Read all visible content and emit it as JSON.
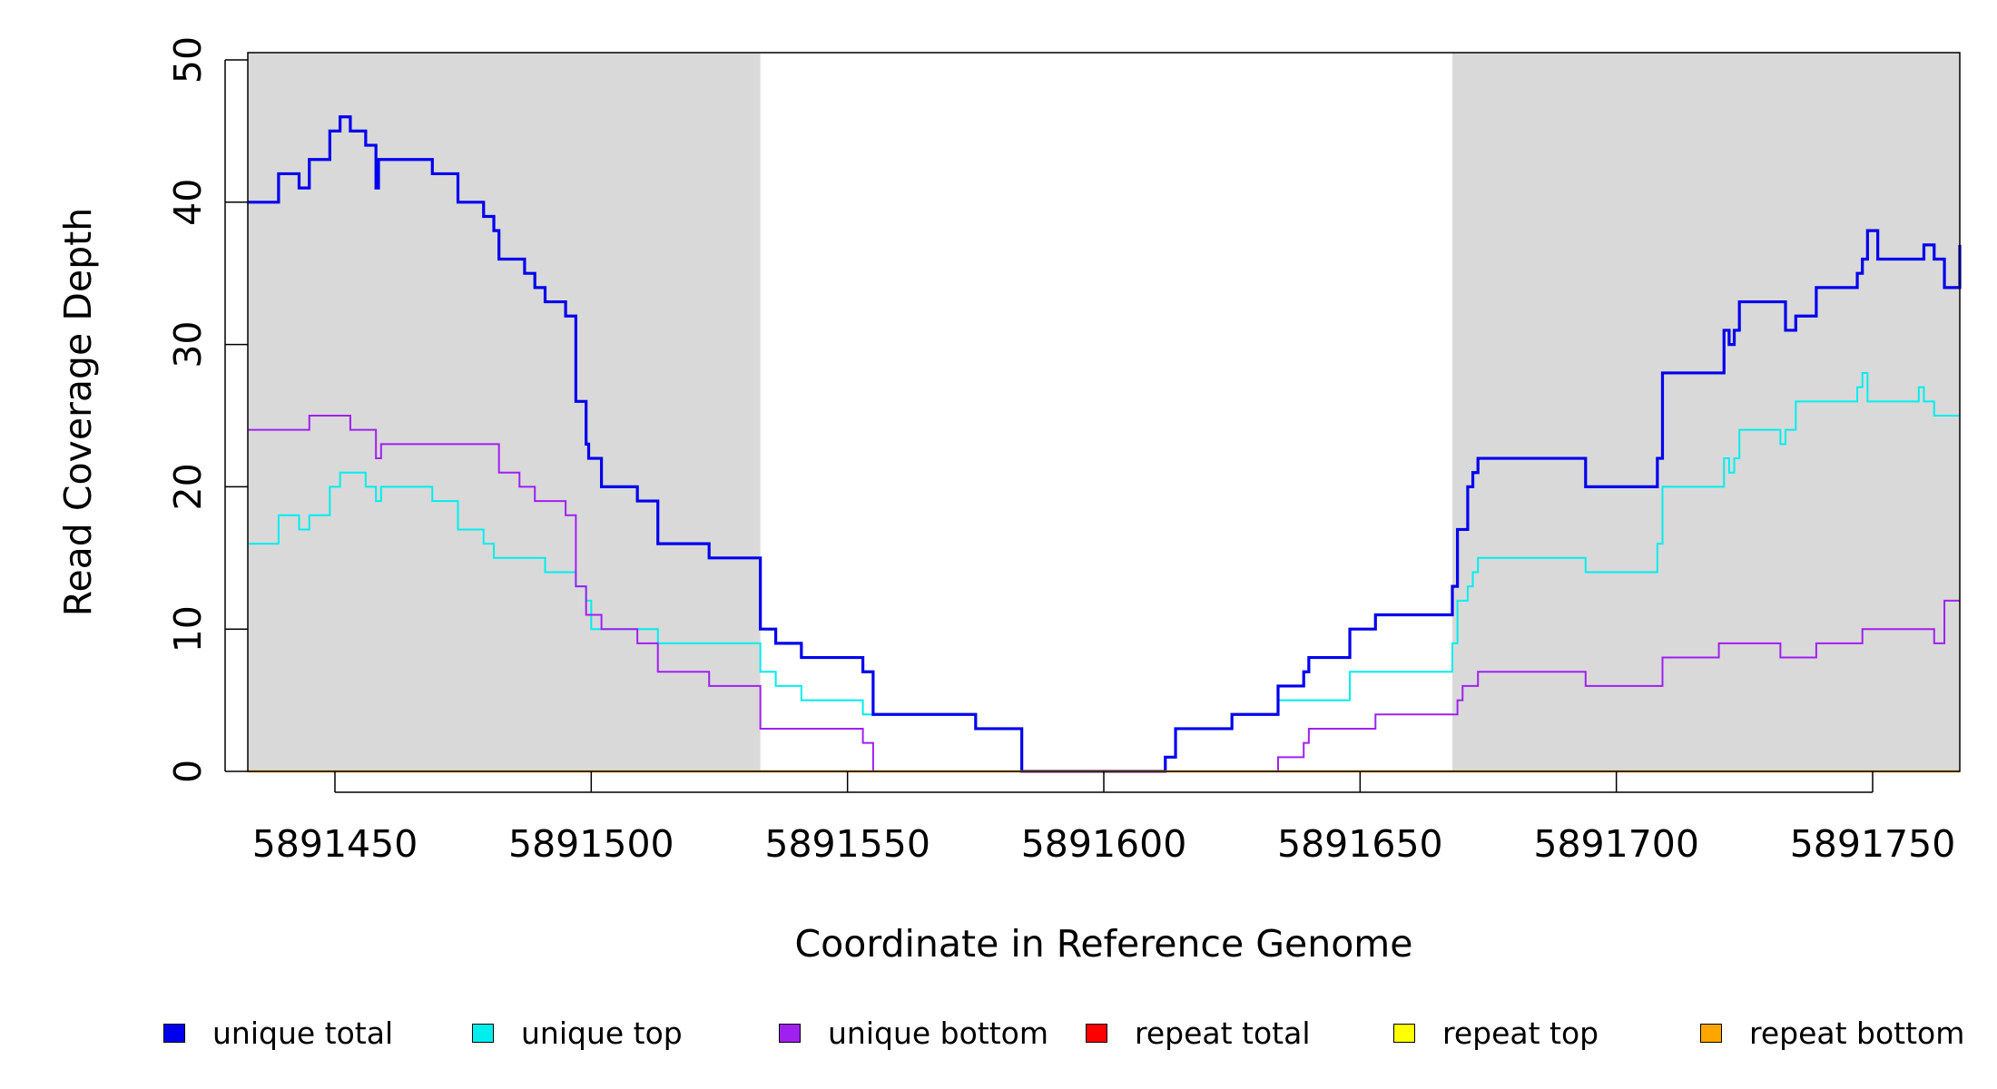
{
  "chart_data": {
    "type": "line",
    "title": "",
    "xlabel": "Coordinate in Reference Genome",
    "ylabel": "Read Coverage Depth",
    "xlim": [
      5891433,
      5891767
    ],
    "ylim": [
      0,
      50
    ],
    "x_ticks": [
      5891450,
      5891500,
      5891550,
      5891600,
      5891650,
      5891700,
      5891750
    ],
    "x_tick_labels": [
      "5891450",
      "5891500",
      "5891550",
      "5891600",
      "5891650",
      "5891700",
      "5891750"
    ],
    "y_ticks": [
      0,
      10,
      20,
      30,
      40,
      50
    ],
    "y_tick_labels": [
      "0",
      "10",
      "20",
      "30",
      "40",
      "50"
    ],
    "shaded_regions": [
      {
        "x_start": 5891433,
        "x_end": 5891533,
        "color": "#d9d9d9"
      },
      {
        "x_start": 5891668,
        "x_end": 5891767,
        "color": "#d9d9d9"
      }
    ],
    "series": [
      {
        "name": "unique total",
        "color": "#0000ee",
        "width": 3.2,
        "x": [
          5891433,
          5891439,
          5891443,
          5891445,
          5891449,
          5891451,
          5891453,
          5891456,
          5891458,
          5891458.5,
          5891459,
          5891469,
          5891474,
          5891479,
          5891481,
          5891482,
          5891487,
          5891489,
          5891491,
          5891495,
          5891497,
          5891499,
          5891499.5,
          5891500,
          5891502,
          5891509,
          5891513,
          5891523,
          5891533,
          5891536,
          5891541,
          5891553,
          5891555,
          5891575,
          5891584,
          5891600,
          5891612,
          5891614,
          5891625,
          5891634,
          5891639,
          5891640,
          5891648,
          5891653,
          5891668,
          5891669,
          5891671,
          5891672,
          5891673,
          5891674,
          5891694,
          5891708,
          5891709,
          5891721,
          5891722,
          5891723,
          5891724,
          5891732,
          5891733,
          5891735,
          5891739,
          5891747,
          5891748,
          5891749,
          5891751,
          5891759,
          5891760,
          5891762,
          5891764,
          5891767
        ],
        "values": [
          40,
          42,
          41,
          43,
          45,
          46,
          45,
          44,
          41,
          43,
          43,
          42,
          40,
          39,
          38,
          36,
          35,
          34,
          33,
          32,
          26,
          23,
          22,
          22,
          20,
          19,
          16,
          15,
          10,
          9,
          8,
          7,
          4,
          3,
          0,
          0,
          1,
          3,
          4,
          6,
          7,
          8,
          10,
          11,
          13,
          17,
          20,
          21,
          22,
          22,
          20,
          22,
          28,
          31,
          30,
          31,
          33,
          33,
          31,
          32,
          34,
          35,
          36,
          38,
          36,
          36,
          37,
          36,
          34,
          37
        ]
      },
      {
        "name": "unique top",
        "color": "#00eeee",
        "width": 2,
        "x": [
          5891433,
          5891439,
          5891443,
          5891445,
          5891449,
          5891451,
          5891456,
          5891458,
          5891458.5,
          5891459,
          5891469,
          5891474,
          5891479,
          5891481,
          5891483,
          5891491,
          5891497,
          5891499,
          5891500,
          5891513,
          5891533,
          5891536,
          5891541,
          5891553,
          5891555,
          5891575,
          5891584,
          5891600,
          5891612,
          5891614,
          5891625,
          5891634,
          5891648,
          5891668,
          5891669,
          5891671,
          5891672,
          5891673,
          5891674,
          5891694,
          5891708,
          5891709,
          5891721,
          5891722,
          5891723,
          5891724,
          5891732,
          5891733,
          5891735,
          5891747,
          5891748,
          5891749,
          5891751,
          5891759,
          5891760,
          5891762,
          5891767
        ],
        "values": [
          16,
          18,
          17,
          18,
          20,
          21,
          20,
          19,
          19,
          20,
          19,
          17,
          16,
          15,
          15,
          14,
          13,
          12,
          10,
          9,
          7,
          6,
          5,
          4,
          4,
          3,
          0,
          0,
          1,
          3,
          4,
          5,
          7,
          9,
          12,
          13,
          14,
          15,
          15,
          14,
          16,
          20,
          22,
          21,
          22,
          24,
          23,
          24,
          26,
          27,
          28,
          26,
          26,
          27,
          26,
          25,
          25
        ]
      },
      {
        "name": "unique bottom",
        "color": "#a020f0",
        "width": 2,
        "x": [
          5891433,
          5891445,
          5891453,
          5891458,
          5891458.5,
          5891459,
          5891482,
          5891486,
          5891487,
          5891489,
          5891491,
          5891495,
          5891497,
          5891499,
          5891502,
          5891509,
          5891513,
          5891523,
          5891533,
          5891553,
          5891555,
          5891575,
          5891584,
          5891600,
          5891612,
          5891614,
          5891625,
          5891634,
          5891639,
          5891640,
          5891641,
          5891653,
          5891668,
          5891669,
          5891670,
          5891671,
          5891673,
          5891694,
          5891709,
          5891720,
          5891732,
          5891739,
          5891748,
          5891751,
          5891759,
          5891762,
          5891764,
          5891767
        ],
        "values": [
          24,
          25,
          24,
          22,
          22,
          23,
          21,
          20,
          20,
          19,
          19,
          18,
          13,
          11,
          10,
          9,
          7,
          6,
          3,
          2,
          0,
          0,
          0,
          0,
          0,
          0,
          0,
          1,
          2,
          3,
          3,
          4,
          4,
          5,
          6,
          6,
          7,
          6,
          8,
          9,
          8,
          9,
          10,
          10,
          10,
          9,
          12,
          12
        ]
      },
      {
        "name": "repeat total",
        "color": "#ff0000",
        "width": 2,
        "x": [
          5891433,
          5891767
        ],
        "values": [
          0,
          0
        ]
      },
      {
        "name": "repeat top",
        "color": "#ffff00",
        "width": 2,
        "x": [
          5891433,
          5891767
        ],
        "values": [
          0,
          0
        ]
      },
      {
        "name": "repeat bottom",
        "color": "#ffa500",
        "width": 2.4,
        "x": [
          5891433,
          5891767
        ],
        "values": [
          0,
          0
        ]
      }
    ],
    "legend": {
      "placement": "bottom",
      "entries": [
        {
          "label": "unique total",
          "color": "#0000ee"
        },
        {
          "label": "unique top",
          "color": "#00eeee"
        },
        {
          "label": "unique bottom",
          "color": "#a020f0"
        },
        {
          "label": "repeat total",
          "color": "#ff0000"
        },
        {
          "label": "repeat top",
          "color": "#ffff00"
        },
        {
          "label": "repeat bottom",
          "color": "#ffa500"
        }
      ]
    }
  }
}
